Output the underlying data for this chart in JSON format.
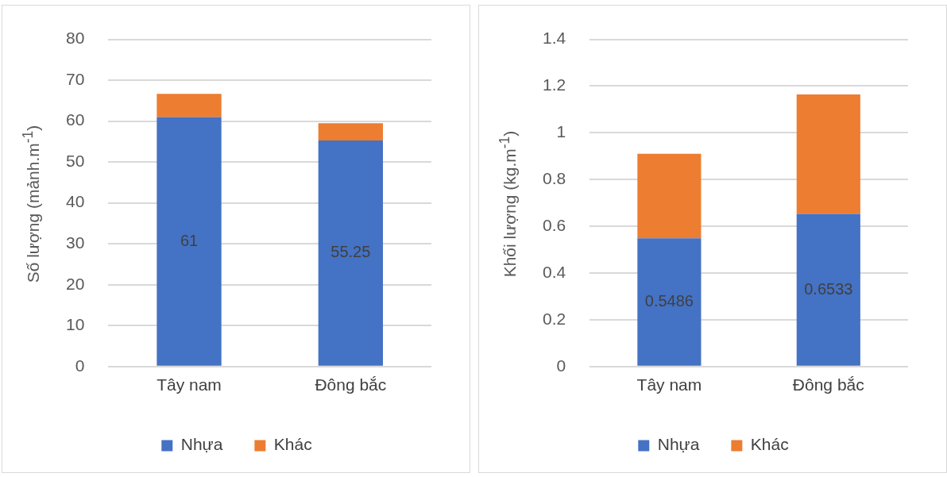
{
  "chart_data": [
    {
      "type": "bar",
      "stacked": true,
      "ylabel": "Số lượng (mảnh.m$^{-1}$)",
      "categories": [
        "Tây nam",
        "Đông bắc"
      ],
      "ylim": [
        0,
        80
      ],
      "yticks": [
        0,
        10,
        20,
        30,
        40,
        50,
        60,
        70,
        80
      ],
      "grid": "y",
      "legend": "bottom",
      "series": [
        {
          "name": "Nhựa",
          "color": "#4472c4",
          "values": [
            61,
            55.25
          ],
          "value_labels": [
            "61",
            "55.25"
          ]
        },
        {
          "name": "Khác",
          "color": "#ed7d31",
          "values": [
            5.7,
            4.25
          ]
        }
      ]
    },
    {
      "type": "bar",
      "stacked": true,
      "ylabel": "Khối lượng (kg.m$^{-1}$)",
      "categories": [
        "Tây nam",
        "Đông bắc"
      ],
      "ylim": [
        0,
        1.4
      ],
      "yticks": [
        0,
        0.2,
        0.4,
        0.6,
        0.8,
        1,
        1.2,
        1.4
      ],
      "grid": "y",
      "legend": "bottom",
      "series": [
        {
          "name": "Nhựa",
          "color": "#4472c4",
          "values": [
            0.5486,
            0.6533
          ],
          "value_labels": [
            "0.5486",
            "0.6533"
          ]
        },
        {
          "name": "Khác",
          "color": "#ed7d31",
          "values": [
            0.362,
            0.511
          ]
        }
      ]
    }
  ]
}
